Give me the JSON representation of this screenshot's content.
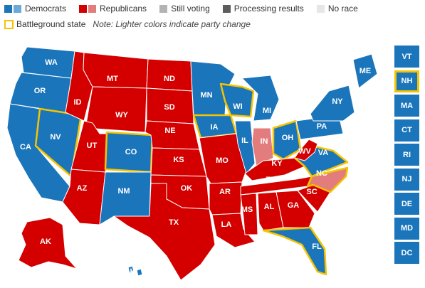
{
  "colors": {
    "dem": "#1a75bb",
    "dem_light": "#6aa9d8",
    "rep": "#d40000",
    "rep_light": "#e37c7c",
    "still_voting": "#b3b3b3",
    "processing": "#5c5c5c",
    "no_race": "#e6e6e6",
    "battleground": "#f5c400"
  },
  "legend": {
    "democrats": "Democrats",
    "republicans": "Republicans",
    "still_voting": "Still voting",
    "processing": "Processing results",
    "no_race": "No race",
    "battleground": "Battleground state",
    "note": "Note: Lighter colors indicate party change"
  },
  "states": [
    {
      "abbr": "WA",
      "party": "dem"
    },
    {
      "abbr": "OR",
      "party": "dem"
    },
    {
      "abbr": "CA",
      "party": "dem"
    },
    {
      "abbr": "NV",
      "party": "dem",
      "battleground": true
    },
    {
      "abbr": "ID",
      "party": "rep"
    },
    {
      "abbr": "MT",
      "party": "rep"
    },
    {
      "abbr": "WY",
      "party": "rep"
    },
    {
      "abbr": "UT",
      "party": "rep"
    },
    {
      "abbr": "AZ",
      "party": "rep"
    },
    {
      "abbr": "CO",
      "party": "dem",
      "battleground": true
    },
    {
      "abbr": "NM",
      "party": "dem"
    },
    {
      "abbr": "ND",
      "party": "rep"
    },
    {
      "abbr": "SD",
      "party": "rep"
    },
    {
      "abbr": "NE",
      "party": "rep"
    },
    {
      "abbr": "KS",
      "party": "rep"
    },
    {
      "abbr": "OK",
      "party": "rep"
    },
    {
      "abbr": "TX",
      "party": "rep"
    },
    {
      "abbr": "MN",
      "party": "dem"
    },
    {
      "abbr": "IA",
      "party": "dem",
      "battleground": true
    },
    {
      "abbr": "MO",
      "party": "rep"
    },
    {
      "abbr": "AR",
      "party": "rep"
    },
    {
      "abbr": "LA",
      "party": "rep"
    },
    {
      "abbr": "WI",
      "party": "dem",
      "battleground": true
    },
    {
      "abbr": "IL",
      "party": "dem"
    },
    {
      "abbr": "MI",
      "party": "dem"
    },
    {
      "abbr": "IN",
      "party": "rep_light"
    },
    {
      "abbr": "OH",
      "party": "dem",
      "battleground": true
    },
    {
      "abbr": "KY",
      "party": "rep"
    },
    {
      "abbr": "TN",
      "party": "rep"
    },
    {
      "abbr": "MS",
      "party": "rep"
    },
    {
      "abbr": "AL",
      "party": "rep"
    },
    {
      "abbr": "GA",
      "party": "rep"
    },
    {
      "abbr": "FL",
      "party": "dem",
      "battleground": true
    },
    {
      "abbr": "SC",
      "party": "rep"
    },
    {
      "abbr": "NC",
      "party": "rep_light",
      "battleground": true
    },
    {
      "abbr": "VA",
      "party": "dem",
      "battleground": true
    },
    {
      "abbr": "WV",
      "party": "rep"
    },
    {
      "abbr": "PA",
      "party": "dem"
    },
    {
      "abbr": "NY",
      "party": "dem"
    },
    {
      "abbr": "ME",
      "party": "dem"
    },
    {
      "abbr": "AK",
      "party": "rep"
    },
    {
      "abbr": "HI",
      "party": "dem"
    }
  ],
  "sidebar_states": [
    {
      "abbr": "VT",
      "party": "dem"
    },
    {
      "abbr": "NH",
      "party": "dem",
      "battleground": true
    },
    {
      "abbr": "MA",
      "party": "dem"
    },
    {
      "abbr": "CT",
      "party": "dem"
    },
    {
      "abbr": "RI",
      "party": "dem"
    },
    {
      "abbr": "NJ",
      "party": "dem"
    },
    {
      "abbr": "DE",
      "party": "dem"
    },
    {
      "abbr": "MD",
      "party": "dem"
    },
    {
      "abbr": "DC",
      "party": "dem"
    }
  ]
}
